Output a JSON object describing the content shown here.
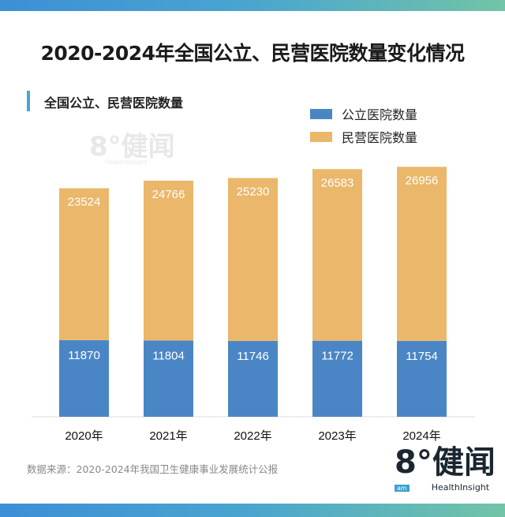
{
  "title": "2020-2024年全国公立、民营医院数量变化情况",
  "subtitle": "全国公立、民营医院数量",
  "source": "数据来源：2020-2024年我国卫生健康事业发展统计公报",
  "logo": {
    "mark": "8°健闻",
    "sub": "HealthInsight",
    "badge": "am"
  },
  "chart_data": {
    "type": "bar",
    "stacked": true,
    "categories": [
      "2020年",
      "2021年",
      "2022年",
      "2023年",
      "2024年"
    ],
    "series": [
      {
        "name": "公立医院数量",
        "color": "#4a86c5",
        "values": [
          11870,
          11804,
          11746,
          11772,
          11754
        ]
      },
      {
        "name": "民营医院数量",
        "color": "#ebb76a",
        "values": [
          23524,
          24766,
          25230,
          26583,
          26956
        ]
      }
    ],
    "legend": "top-right",
    "grid": false,
    "ylim": [
      0,
      40000
    ]
  }
}
